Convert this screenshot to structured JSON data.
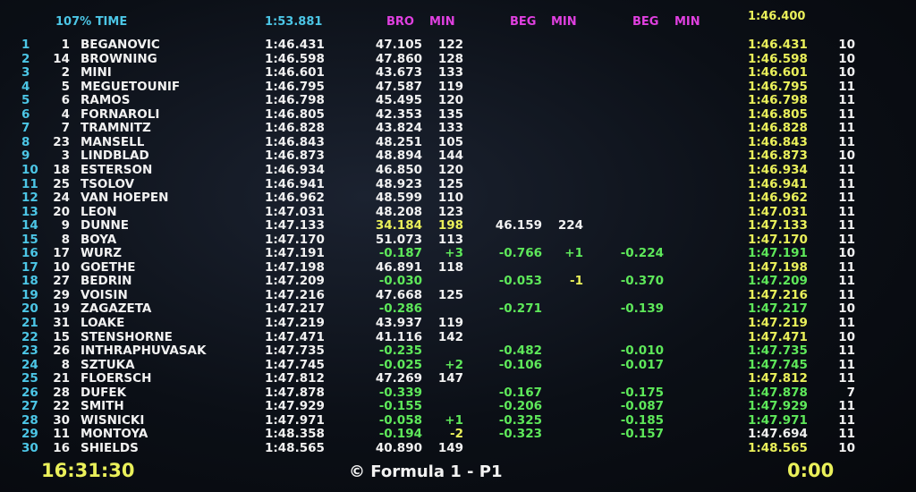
{
  "header": {
    "label_107": "107% TIME",
    "time_107": "1:53.881",
    "col_a_label1": "BRO",
    "col_a_label2": "MIN",
    "col_b_label1": "BEG",
    "col_b_label2": "MIN",
    "col_c_label1": "BEG",
    "col_c_label2": "MIN",
    "right_best": "1:46.400"
  },
  "rows": [
    {
      "pos": "1",
      "num": "1",
      "driver": "BEGANOVIC",
      "time": "1:46.431",
      "gap_a": "47.105",
      "gap_a_color": "white",
      "lap_a": "122",
      "lap_a_color": "white",
      "gap_b": "",
      "lap_b": "",
      "gap_c": "",
      "right_time": "1:46.431",
      "right_laps": "10",
      "right_color": "yellow"
    },
    {
      "pos": "2",
      "num": "14",
      "driver": "BROWNING",
      "time": "1:46.598",
      "gap_a": "47.860",
      "gap_a_color": "white",
      "lap_a": "128",
      "lap_a_color": "white",
      "gap_b": "",
      "lap_b": "",
      "gap_c": "",
      "right_time": "1:46.598",
      "right_laps": "10",
      "right_color": "yellow"
    },
    {
      "pos": "3",
      "num": "2",
      "driver": "MINI",
      "time": "1:46.601",
      "gap_a": "43.673",
      "gap_a_color": "white",
      "lap_a": "133",
      "lap_a_color": "white",
      "gap_b": "",
      "lap_b": "",
      "gap_c": "",
      "right_time": "1:46.601",
      "right_laps": "10",
      "right_color": "yellow"
    },
    {
      "pos": "4",
      "num": "5",
      "driver": "MEGUETOUNIF",
      "time": "1:46.795",
      "gap_a": "47.587",
      "gap_a_color": "white",
      "lap_a": "119",
      "lap_a_color": "white",
      "gap_b": "",
      "lap_b": "",
      "gap_c": "",
      "right_time": "1:46.795",
      "right_laps": "11",
      "right_color": "yellow"
    },
    {
      "pos": "5",
      "num": "6",
      "driver": "RAMOS",
      "time": "1:46.798",
      "gap_a": "45.495",
      "gap_a_color": "white",
      "lap_a": "120",
      "lap_a_color": "white",
      "gap_b": "",
      "lap_b": "",
      "gap_c": "",
      "right_time": "1:46.798",
      "right_laps": "11",
      "right_color": "yellow"
    },
    {
      "pos": "6",
      "num": "4",
      "driver": "FORNAROLI",
      "time": "1:46.805",
      "gap_a": "42.353",
      "gap_a_color": "white",
      "lap_a": "135",
      "lap_a_color": "white",
      "gap_b": "",
      "lap_b": "",
      "gap_c": "",
      "right_time": "1:46.805",
      "right_laps": "11",
      "right_color": "yellow"
    },
    {
      "pos": "7",
      "num": "7",
      "driver": "TRAMNITZ",
      "time": "1:46.828",
      "gap_a": "43.824",
      "gap_a_color": "white",
      "lap_a": "133",
      "lap_a_color": "white",
      "gap_b": "",
      "lap_b": "",
      "gap_c": "",
      "right_time": "1:46.828",
      "right_laps": "11",
      "right_color": "yellow"
    },
    {
      "pos": "8",
      "num": "23",
      "driver": "MANSELL",
      "time": "1:46.843",
      "gap_a": "48.251",
      "gap_a_color": "white",
      "lap_a": "105",
      "lap_a_color": "white",
      "gap_b": "",
      "lap_b": "",
      "gap_c": "",
      "right_time": "1:46.843",
      "right_laps": "11",
      "right_color": "yellow"
    },
    {
      "pos": "9",
      "num": "3",
      "driver": "LINDBLAD",
      "time": "1:46.873",
      "gap_a": "48.894",
      "gap_a_color": "white",
      "lap_a": "144",
      "lap_a_color": "white",
      "gap_b": "",
      "lap_b": "",
      "gap_c": "",
      "right_time": "1:46.873",
      "right_laps": "10",
      "right_color": "yellow"
    },
    {
      "pos": "10",
      "num": "18",
      "driver": "ESTERSON",
      "time": "1:46.934",
      "gap_a": "46.850",
      "gap_a_color": "white",
      "lap_a": "120",
      "lap_a_color": "white",
      "gap_b": "",
      "lap_b": "",
      "gap_c": "",
      "right_time": "1:46.934",
      "right_laps": "11",
      "right_color": "yellow"
    },
    {
      "pos": "11",
      "num": "25",
      "driver": "TSOLOV",
      "time": "1:46.941",
      "gap_a": "48.923",
      "gap_a_color": "white",
      "lap_a": "125",
      "lap_a_color": "white",
      "gap_b": "",
      "lap_b": "",
      "gap_c": "",
      "right_time": "1:46.941",
      "right_laps": "11",
      "right_color": "yellow"
    },
    {
      "pos": "12",
      "num": "24",
      "driver": "VAN HOEPEN",
      "time": "1:46.962",
      "gap_a": "48.599",
      "gap_a_color": "white",
      "lap_a": "110",
      "lap_a_color": "white",
      "gap_b": "",
      "lap_b": "",
      "gap_c": "",
      "right_time": "1:46.962",
      "right_laps": "11",
      "right_color": "yellow"
    },
    {
      "pos": "13",
      "num": "20",
      "driver": "LEON",
      "time": "1:47.031",
      "gap_a": "48.208",
      "gap_a_color": "white",
      "lap_a": "123",
      "lap_a_color": "white",
      "gap_b": "",
      "lap_b": "",
      "gap_c": "",
      "right_time": "1:47.031",
      "right_laps": "11",
      "right_color": "yellow"
    },
    {
      "pos": "14",
      "num": "9",
      "driver": "DUNNE",
      "time": "1:47.133",
      "gap_a": "34.184",
      "gap_a_color": "yellow",
      "lap_a": "198",
      "lap_a_color": "yellow",
      "gap_b": "46.159",
      "lap_b": "224",
      "lap_b_color": "white",
      "gap_b_color": "white",
      "gap_c": "",
      "right_time": "1:47.133",
      "right_laps": "11",
      "right_color": "yellow"
    },
    {
      "pos": "15",
      "num": "8",
      "driver": "BOYA",
      "time": "1:47.170",
      "gap_a": "51.073",
      "gap_a_color": "white",
      "lap_a": "113",
      "lap_a_color": "white",
      "gap_b": "",
      "lap_b": "",
      "gap_c": "",
      "right_time": "1:47.170",
      "right_laps": "11",
      "right_color": "yellow"
    },
    {
      "pos": "16",
      "num": "17",
      "driver": "WURZ",
      "time": "1:47.191",
      "gap_a": "-0.187",
      "gap_a_color": "green",
      "lap_a": "+3",
      "lap_a_color": "green",
      "gap_b": "-0.766",
      "gap_b_color": "green",
      "lap_b": "+1",
      "lap_b_color": "green",
      "gap_c": "-0.224",
      "right_time": "1:47.191",
      "right_laps": "10",
      "right_color": "green"
    },
    {
      "pos": "17",
      "num": "10",
      "driver": "GOETHE",
      "time": "1:47.198",
      "gap_a": "46.891",
      "gap_a_color": "white",
      "lap_a": "118",
      "lap_a_color": "white",
      "gap_b": "",
      "lap_b": "",
      "gap_c": "",
      "right_time": "1:47.198",
      "right_laps": "11",
      "right_color": "yellow"
    },
    {
      "pos": "18",
      "num": "27",
      "driver": "BEDRIN",
      "time": "1:47.209",
      "gap_a": "-0.030",
      "gap_a_color": "green",
      "lap_a": "",
      "lap_a_color": "green",
      "gap_b": "-0.053",
      "gap_b_color": "green",
      "lap_b": "-1",
      "lap_b_color": "yellow",
      "gap_c": "-0.370",
      "right_time": "1:47.209",
      "right_laps": "11",
      "right_color": "green"
    },
    {
      "pos": "19",
      "num": "29",
      "driver": "VOISIN",
      "time": "1:47.216",
      "gap_a": "47.668",
      "gap_a_color": "white",
      "lap_a": "125",
      "lap_a_color": "white",
      "gap_b": "",
      "lap_b": "",
      "gap_c": "",
      "right_time": "1:47.216",
      "right_laps": "11",
      "right_color": "yellow"
    },
    {
      "pos": "20",
      "num": "19",
      "driver": "ZAGAZETA",
      "time": "1:47.217",
      "gap_a": "-0.286",
      "gap_a_color": "green",
      "lap_a": "",
      "lap_a_color": "green",
      "gap_b": "-0.271",
      "gap_b_color": "green",
      "lap_b": "",
      "lap_b_color": "green",
      "gap_c": "-0.139",
      "right_time": "1:47.217",
      "right_laps": "10",
      "right_color": "green"
    },
    {
      "pos": "21",
      "num": "31",
      "driver": "LOAKE",
      "time": "1:47.219",
      "gap_a": "43.937",
      "gap_a_color": "white",
      "lap_a": "119",
      "lap_a_color": "white",
      "gap_b": "",
      "lap_b": "",
      "gap_c": "",
      "right_time": "1:47.219",
      "right_laps": "11",
      "right_color": "yellow"
    },
    {
      "pos": "22",
      "num": "15",
      "driver": "STENSHORNE",
      "time": "1:47.471",
      "gap_a": "41.116",
      "gap_a_color": "white",
      "lap_a": "142",
      "lap_a_color": "white",
      "gap_b": "",
      "lap_b": "",
      "gap_c": "",
      "right_time": "1:47.471",
      "right_laps": "10",
      "right_color": "yellow"
    },
    {
      "pos": "23",
      "num": "26",
      "driver": "INTHRAPHUVASAK",
      "time": "1:47.735",
      "gap_a": "-0.235",
      "gap_a_color": "green",
      "lap_a": "",
      "lap_a_color": "green",
      "gap_b": "-0.482",
      "gap_b_color": "green",
      "lap_b": "",
      "lap_b_color": "green",
      "gap_c": "-0.010",
      "right_time": "1:47.735",
      "right_laps": "11",
      "right_color": "green"
    },
    {
      "pos": "24",
      "num": "8",
      "driver": "SZTUKA",
      "time": "1:47.745",
      "gap_a": "-0.025",
      "gap_a_color": "green",
      "lap_a": "+2",
      "lap_a_color": "green",
      "gap_b": "-0.106",
      "gap_b_color": "green",
      "lap_b": "",
      "lap_b_color": "green",
      "gap_c": "-0.017",
      "right_time": "1:47.745",
      "right_laps": "11",
      "right_color": "green"
    },
    {
      "pos": "25",
      "num": "21",
      "driver": "FLOERSCH",
      "time": "1:47.812",
      "gap_a": "47.269",
      "gap_a_color": "white",
      "lap_a": "147",
      "lap_a_color": "white",
      "gap_b": "",
      "lap_b": "",
      "gap_c": "",
      "right_time": "1:47.812",
      "right_laps": "11",
      "right_color": "yellow"
    },
    {
      "pos": "26",
      "num": "28",
      "driver": "DUFEK",
      "time": "1:47.878",
      "gap_a": "-0.339",
      "gap_a_color": "green",
      "lap_a": "",
      "lap_a_color": "green",
      "gap_b": "-0.167",
      "gap_b_color": "green",
      "lap_b": "",
      "lap_b_color": "green",
      "gap_c": "-0.175",
      "right_time": "1:47.878",
      "right_laps": "7",
      "right_color": "green"
    },
    {
      "pos": "27",
      "num": "22",
      "driver": "SMITH",
      "time": "1:47.929",
      "gap_a": "-0.155",
      "gap_a_color": "green",
      "lap_a": "",
      "lap_a_color": "green",
      "gap_b": "-0.206",
      "gap_b_color": "green",
      "lap_b": "",
      "lap_b_color": "green",
      "gap_c": "-0.087",
      "right_time": "1:47.929",
      "right_laps": "11",
      "right_color": "green"
    },
    {
      "pos": "28",
      "num": "30",
      "driver": "WISNICKI",
      "time": "1:47.971",
      "gap_a": "-0.058",
      "gap_a_color": "green",
      "lap_a": "+1",
      "lap_a_color": "green",
      "gap_b": "-0.325",
      "gap_b_color": "green",
      "lap_b": "",
      "lap_b_color": "green",
      "gap_c": "-0.185",
      "right_time": "1:47.971",
      "right_laps": "11",
      "right_color": "green"
    },
    {
      "pos": "29",
      "num": "11",
      "driver": "MONTOYA",
      "time": "1:48.358",
      "gap_a": "-0.194",
      "gap_a_color": "green",
      "lap_a": "-2",
      "lap_a_color": "yellow",
      "gap_b": "-0.323",
      "gap_b_color": "green",
      "lap_b": "",
      "lap_b_color": "green",
      "gap_c": "-0.157",
      "right_time": "1:47.694",
      "right_laps": "11",
      "right_color": "white"
    },
    {
      "pos": "30",
      "num": "16",
      "driver": "SHIELDS",
      "time": "1:48.565",
      "gap_a": "40.890",
      "gap_a_color": "white",
      "lap_a": "149",
      "lap_a_color": "white",
      "gap_b": "",
      "lap_b": "",
      "gap_c": "",
      "right_time": "1:48.565",
      "right_laps": "10",
      "right_color": "yellow"
    }
  ],
  "footer": {
    "clock": "16:31:30",
    "session": "© Formula 1 - P1",
    "remaining": "0:00"
  },
  "colors": {
    "cyan": "#4cc6e6",
    "magenta": "#e040e0",
    "yellow": "#eaf05a",
    "green": "#5ee85a",
    "white": "#f2f2f2"
  }
}
